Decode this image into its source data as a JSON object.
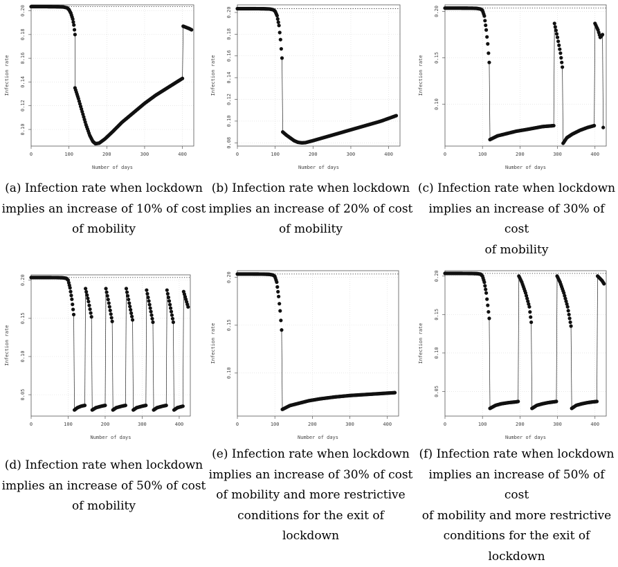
{
  "chart_data": [
    {
      "panel": "a",
      "type": "scatter",
      "title": "",
      "xlabel": "Number of days",
      "ylabel": "Infection rate",
      "xlim": [
        0,
        430
      ],
      "ylim": [
        0.086,
        0.205
      ],
      "xticks": [
        0,
        100,
        200,
        300,
        400
      ],
      "xtick_labels": [
        "0",
        "100",
        "200",
        "300",
        "400"
      ],
      "yticks": [
        0.1,
        0.12,
        0.14,
        0.16,
        0.18,
        0.2
      ],
      "ytick_labels": [
        "0.10",
        "0.12",
        "0.14",
        "0.16",
        "0.18",
        "0.20"
      ],
      "reference_line": 0.2035,
      "grid": true,
      "segments": [
        {
          "x": [
            0,
            40,
            70,
            85,
            95,
            100,
            105,
            110,
            113,
            116
          ],
          "y": [
            0.2035,
            0.2035,
            0.2034,
            0.2032,
            0.2025,
            0.201,
            0.198,
            0.193,
            0.188,
            0.18
          ]
        },
        {
          "x": [
            116,
            125,
            135,
            145,
            155,
            163,
            170,
            180,
            195,
            215,
            240,
            270,
            300,
            330,
            360,
            385,
            400
          ],
          "y": [
            0.135,
            0.126,
            0.115,
            0.104,
            0.095,
            0.09,
            0.088,
            0.0885,
            0.092,
            0.098,
            0.106,
            0.114,
            0.122,
            0.129,
            0.135,
            0.14,
            0.143
          ]
        },
        {
          "x": [
            402,
            410,
            418,
            424
          ],
          "y": [
            0.187,
            0.186,
            0.185,
            0.184
          ]
        }
      ],
      "caption": [
        "(a) Infection rate when lockdown",
        "implies an increase of 10% of cost",
        "of mobility"
      ]
    },
    {
      "panel": "b",
      "type": "scatter",
      "title": "",
      "xlabel": "Number of days",
      "ylabel": "Infection rate",
      "xlim": [
        0,
        430
      ],
      "ylim": [
        0.077,
        0.207
      ],
      "xticks": [
        0,
        100,
        200,
        300,
        400
      ],
      "xtick_labels": [
        "0",
        "100",
        "200",
        "300",
        "400"
      ],
      "yticks": [
        0.08,
        0.1,
        0.12,
        0.14,
        0.16,
        0.18,
        0.2
      ],
      "ytick_labels": [
        "0.08",
        "0.10",
        "0.12",
        "0.14",
        "0.16",
        "0.18",
        "0.20"
      ],
      "reference_line": 0.2035,
      "grid": true,
      "segments": [
        {
          "x": [
            0,
            40,
            70,
            85,
            95,
            100,
            105,
            110,
            114,
            118
          ],
          "y": [
            0.2035,
            0.2035,
            0.2034,
            0.2032,
            0.2025,
            0.201,
            0.197,
            0.188,
            0.175,
            0.158
          ]
        },
        {
          "x": [
            120,
            130,
            140,
            150,
            160,
            170,
            180,
            200,
            230,
            260,
            300,
            340,
            380,
            420
          ],
          "y": [
            0.09,
            0.087,
            0.0845,
            0.082,
            0.0805,
            0.08,
            0.0802,
            0.082,
            0.085,
            0.088,
            0.092,
            0.096,
            0.1,
            0.105
          ]
        }
      ],
      "caption": [
        "(b) Infection rate when lockdown",
        "implies an increase of 20% of cost",
        "of mobility"
      ]
    },
    {
      "panel": "c",
      "type": "scatter",
      "title": "",
      "xlabel": "Number of days",
      "ylabel": "Infection rate",
      "xlim": [
        0,
        430
      ],
      "ylim": [
        0.055,
        0.207
      ],
      "xticks": [
        0,
        100,
        200,
        300,
        400
      ],
      "xtick_labels": [
        "0",
        "100",
        "200",
        "300",
        "400"
      ],
      "yticks": [
        0.1,
        0.15,
        0.2
      ],
      "ytick_labels": [
        "0.10",
        "0.15",
        "0.20"
      ],
      "reference_line": 0.2035,
      "grid": true,
      "segments": [
        {
          "x": [
            0,
            40,
            70,
            85,
            95,
            100,
            105,
            110,
            114,
            118
          ],
          "y": [
            0.2035,
            0.2035,
            0.2034,
            0.2032,
            0.2025,
            0.201,
            0.195,
            0.18,
            0.165,
            0.145
          ]
        },
        {
          "x": [
            120,
            140,
            160,
            190,
            220,
            260,
            290
          ],
          "y": [
            0.062,
            0.066,
            0.068,
            0.071,
            0.073,
            0.076,
            0.077
          ]
        },
        {
          "x": [
            292,
            300,
            308,
            313
          ],
          "y": [
            0.187,
            0.172,
            0.155,
            0.14
          ]
        },
        {
          "x": [
            315,
            325,
            340,
            360,
            380,
            398
          ],
          "y": [
            0.058,
            0.064,
            0.068,
            0.072,
            0.075,
            0.077
          ]
        },
        {
          "x": [
            400,
            408,
            414,
            420
          ],
          "y": [
            0.187,
            0.18,
            0.172,
            0.175
          ]
        },
        {
          "x": [
            422
          ],
          "y": [
            0.075
          ]
        }
      ],
      "caption": [
        "(c) Infection rate when lockdown",
        "implies an increase of 30% of cost",
        "of mobility"
      ]
    },
    {
      "panel": "d",
      "type": "scatter",
      "title": "",
      "xlabel": "Number of days",
      "ylabel": "Infection rate",
      "xlim": [
        0,
        430
      ],
      "ylim": [
        0.022,
        0.207
      ],
      "xticks": [
        0,
        100,
        200,
        300,
        400
      ],
      "xtick_labels": [
        "0",
        "100",
        "200",
        "300",
        "400"
      ],
      "yticks": [
        0.05,
        0.1,
        0.15,
        0.2
      ],
      "ytick_labels": [
        "0.05",
        "0.10",
        "0.15",
        "0.20"
      ],
      "reference_line": 0.2035,
      "grid": true,
      "segments": [
        {
          "x": [
            0,
            40,
            70,
            85,
            95,
            100,
            105,
            110,
            115
          ],
          "y": [
            0.2035,
            0.2035,
            0.2034,
            0.2032,
            0.2025,
            0.2,
            0.19,
            0.175,
            0.155
          ]
        },
        {
          "x": [
            117,
            125,
            135,
            145
          ],
          "y": [
            0.03,
            0.033,
            0.035,
            0.036
          ]
        },
        {
          "x": [
            147,
            155,
            163
          ],
          "y": [
            0.189,
            0.172,
            0.152
          ]
        },
        {
          "x": [
            165,
            175,
            190,
            200
          ],
          "y": [
            0.03,
            0.033,
            0.035,
            0.036
          ]
        },
        {
          "x": [
            202,
            210,
            219
          ],
          "y": [
            0.189,
            0.17,
            0.146
          ]
        },
        {
          "x": [
            221,
            230,
            245,
            255
          ],
          "y": [
            0.03,
            0.033,
            0.035,
            0.036
          ]
        },
        {
          "x": [
            257,
            265,
            274
          ],
          "y": [
            0.189,
            0.17,
            0.148
          ]
        },
        {
          "x": [
            276,
            285,
            300,
            310
          ],
          "y": [
            0.03,
            0.033,
            0.035,
            0.036
          ]
        },
        {
          "x": [
            312,
            320,
            329
          ],
          "y": [
            0.187,
            0.168,
            0.145
          ]
        },
        {
          "x": [
            331,
            340,
            355,
            365
          ],
          "y": [
            0.03,
            0.033,
            0.035,
            0.036
          ]
        },
        {
          "x": [
            367,
            375,
            384
          ],
          "y": [
            0.187,
            0.168,
            0.145
          ]
        },
        {
          "x": [
            386,
            395,
            410
          ],
          "y": [
            0.03,
            0.033,
            0.035
          ]
        },
        {
          "x": [
            412,
            418,
            424
          ],
          "y": [
            0.185,
            0.175,
            0.165
          ]
        }
      ],
      "caption": [
        "(d) Infection rate when lockdown",
        "implies an increase of 50% of cost",
        "of mobility"
      ]
    },
    {
      "panel": "e",
      "type": "scatter",
      "title": "",
      "xlabel": "Number of days",
      "ylabel": "Infection rate",
      "xlim": [
        0,
        430
      ],
      "ylim": [
        0.055,
        0.207
      ],
      "xticks": [
        0,
        100,
        200,
        300,
        400
      ],
      "xtick_labels": [
        "0",
        "100",
        "200",
        "300",
        "400"
      ],
      "yticks": [
        0.1,
        0.15,
        0.2
      ],
      "ytick_labels": [
        "0.10",
        "0.15",
        "0.20"
      ],
      "reference_line": 0.2035,
      "grid": true,
      "segments": [
        {
          "x": [
            0,
            40,
            70,
            85,
            95,
            100,
            105,
            110,
            114,
            118
          ],
          "y": [
            0.2035,
            0.2035,
            0.2034,
            0.2032,
            0.2025,
            0.201,
            0.195,
            0.18,
            0.165,
            0.145
          ]
        },
        {
          "x": [
            120,
            140,
            160,
            190,
            220,
            260,
            300,
            340,
            380,
            420
          ],
          "y": [
            0.062,
            0.066,
            0.068,
            0.071,
            0.073,
            0.075,
            0.0765,
            0.0775,
            0.0785,
            0.0795
          ]
        }
      ],
      "caption": [
        "(e) Infection rate when lockdown",
        "implies an increase of 30% of cost",
        "of mobility and more restrictive",
        "conditions for the exit of lockdown"
      ]
    },
    {
      "panel": "f",
      "type": "scatter",
      "title": "",
      "xlabel": "Number of days",
      "ylabel": "Infection rate",
      "xlim": [
        0,
        430
      ],
      "ylim": [
        0.018,
        0.207
      ],
      "xticks": [
        0,
        100,
        200,
        300,
        400
      ],
      "xtick_labels": [
        "0",
        "100",
        "200",
        "300",
        "400"
      ],
      "yticks": [
        0.05,
        0.1,
        0.15,
        0.2
      ],
      "ytick_labels": [
        "0.05",
        "0.10",
        "0.15",
        "0.20"
      ],
      "reference_line": 0.2035,
      "grid": true,
      "segments": [
        {
          "x": [
            0,
            40,
            70,
            85,
            95,
            100,
            105,
            110,
            114,
            118
          ],
          "y": [
            0.2035,
            0.2035,
            0.2034,
            0.2032,
            0.2025,
            0.2,
            0.192,
            0.178,
            0.162,
            0.145
          ]
        },
        {
          "x": [
            120,
            135,
            150,
            170,
            190,
            195
          ],
          "y": [
            0.028,
            0.032,
            0.034,
            0.0355,
            0.0365,
            0.037
          ]
        },
        {
          "x": [
            197,
            205,
            215,
            225,
            230
          ],
          "y": [
            0.2,
            0.192,
            0.178,
            0.16,
            0.14
          ]
        },
        {
          "x": [
            232,
            245,
            260,
            275,
            290,
            297
          ],
          "y": [
            0.028,
            0.032,
            0.034,
            0.0355,
            0.0365,
            0.037
          ]
        },
        {
          "x": [
            299,
            307,
            317,
            327,
            336
          ],
          "y": [
            0.2,
            0.192,
            0.178,
            0.16,
            0.135
          ]
        },
        {
          "x": [
            338,
            350,
            365,
            380,
            395,
            405
          ],
          "y": [
            0.028,
            0.032,
            0.034,
            0.0355,
            0.0365,
            0.037
          ]
        },
        {
          "x": [
            407,
            413,
            419,
            424
          ],
          "y": [
            0.2,
            0.197,
            0.194,
            0.19
          ]
        }
      ],
      "caption": [
        "(f) Infection rate when lockdown",
        "implies an increase of 50% of cost",
        "of mobility and more restrictive",
        "conditions for the exit of lockdown"
      ]
    }
  ]
}
